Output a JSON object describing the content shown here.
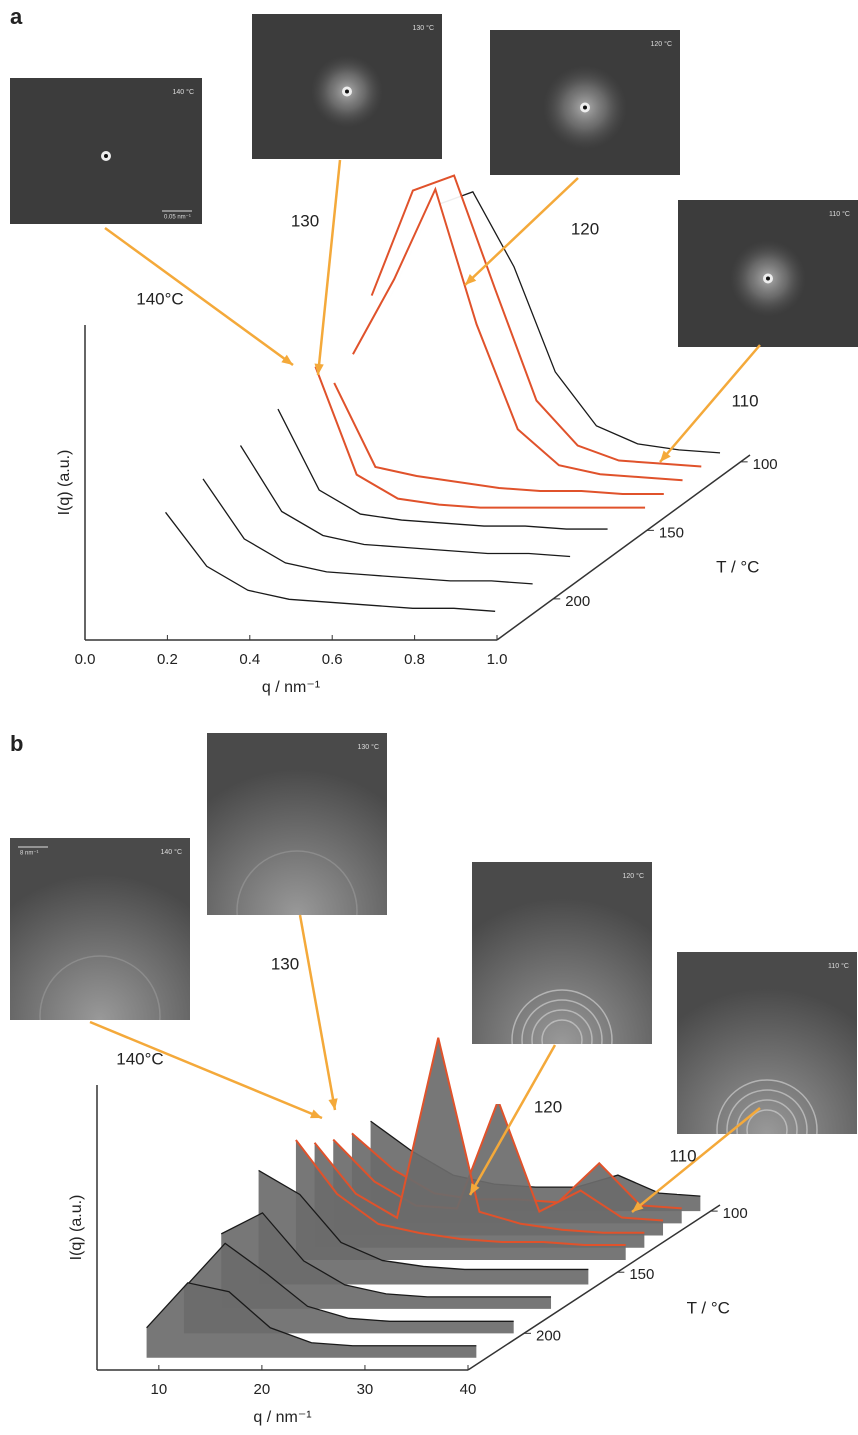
{
  "chart_data": [
    {
      "type": "waterfall",
      "title": "a",
      "x_label": "q / nm⁻¹",
      "y_label": "I(q) (a.u.)",
      "z_label": "T / °C",
      "xlim": [
        0,
        1
      ],
      "xticks": [
        {
          "value": 0,
          "label": "0.0"
        },
        0.2,
        0.4,
        0.6,
        0.8,
        {
          "value": 1,
          "label": "1.0"
        }
      ],
      "zlim": [
        230,
        95
      ],
      "zticks": [
        100,
        150,
        200
      ],
      "ylim": [
        0,
        100
      ],
      "area_color": "#ffffff",
      "x": [
        0.15,
        0.25,
        0.35,
        0.45,
        0.55,
        0.65,
        0.75,
        0.85,
        0.95
      ],
      "series": [
        {
          "color": "#1a1a1a",
          "z": 100,
          "values": [
            55,
            85,
            90,
            65,
            30,
            12,
            6,
            4,
            3
          ]
        },
        {
          "name": "110",
          "color": "#e0522b",
          "z": 110,
          "values": [
            60,
            95,
            100,
            62,
            25,
            10,
            5,
            4,
            3
          ]
        },
        {
          "name": "120",
          "color": "#e0522b",
          "z": 120,
          "values": [
            45,
            70,
            100,
            55,
            20,
            8,
            5,
            4,
            3
          ]
        },
        {
          "name": "130",
          "color": "#e0522b",
          "z": 130,
          "values": [
            40,
            12,
            9,
            7,
            5,
            4,
            4,
            3,
            3
          ]
        },
        {
          "name": "140°C",
          "color": "#e0522b",
          "z": 140,
          "values": [
            50,
            14,
            6,
            4,
            3,
            3,
            3,
            3,
            3
          ]
        },
        {
          "color": "#1a1a1a",
          "z": 160,
          "values": [
            45,
            18,
            10,
            8,
            7,
            6,
            6,
            5,
            5
          ]
        },
        {
          "color": "#1a1a1a",
          "z": 180,
          "values": [
            42,
            20,
            12,
            9,
            8,
            7,
            6,
            6,
            5
          ]
        },
        {
          "color": "#1a1a1a",
          "z": 200,
          "values": [
            40,
            20,
            12,
            9,
            8,
            7,
            6,
            6,
            5
          ]
        },
        {
          "color": "#1a1a1a",
          "z": 220,
          "values": [
            38,
            20,
            12,
            9,
            8,
            7,
            6,
            6,
            5
          ]
        }
      ],
      "insets": [
        {
          "label": "140 °C",
          "scale": "0.05 nm⁻¹"
        },
        {
          "label": "130 °C"
        },
        {
          "label": "120 °C"
        },
        {
          "label": "110 °C"
        }
      ]
    },
    {
      "type": "waterfall",
      "title": "b",
      "x_label": "q / nm⁻¹",
      "y_label": "I(q) (a.u.)",
      "z_label": "T / °C",
      "xlim": [
        4,
        40
      ],
      "xticks": [
        10,
        20,
        30,
        40
      ],
      "zlim": [
        230,
        95
      ],
      "zticks": [
        100,
        150,
        200
      ],
      "ylim": [
        0,
        100
      ],
      "area_color": "#6b6b6b",
      "x": [
        7,
        11,
        15,
        19,
        23,
        27,
        31,
        35,
        39
      ],
      "series": [
        {
          "color": "#1a1a1a",
          "z": 100,
          "values": [
            30,
            20,
            12,
            9,
            8,
            8,
            12,
            6,
            5
          ]
        },
        {
          "name": "110",
          "color": "#e0522b",
          "z": 110,
          "values": [
            30,
            18,
            10,
            8,
            8,
            7,
            20,
            6,
            5
          ]
        },
        {
          "name": "120",
          "color": "#e0522b",
          "z": 120,
          "values": [
            32,
            18,
            10,
            9,
            45,
            8,
            15,
            6,
            5
          ]
        },
        {
          "name": "130",
          "color": "#e0522b",
          "z": 130,
          "values": [
            35,
            18,
            10,
            70,
            12,
            8,
            6,
            5,
            5
          ]
        },
        {
          "name": "140°C",
          "color": "#e0522b",
          "z": 140,
          "values": [
            40,
            22,
            12,
            9,
            7,
            6,
            6,
            5,
            5
          ]
        },
        {
          "color": "#1a1a1a",
          "z": 160,
          "values": [
            38,
            30,
            14,
            8,
            6,
            5,
            5,
            5,
            5
          ]
        },
        {
          "color": "#1a1a1a",
          "z": 180,
          "values": [
            25,
            32,
            16,
            8,
            5,
            4,
            4,
            4,
            4
          ]
        },
        {
          "color": "#1a1a1a",
          "z": 200,
          "values": [
            15,
            30,
            20,
            9,
            5,
            4,
            4,
            4,
            4
          ]
        },
        {
          "color": "#1a1a1a",
          "z": 220,
          "values": [
            10,
            25,
            22,
            10,
            5,
            4,
            4,
            4,
            4
          ]
        }
      ],
      "insets": [
        {
          "label": "140 °C",
          "scale": "8 nm⁻¹"
        },
        {
          "label": "130 °C"
        },
        {
          "label": "120 °C"
        },
        {
          "label": "110 °C"
        }
      ]
    }
  ]
}
